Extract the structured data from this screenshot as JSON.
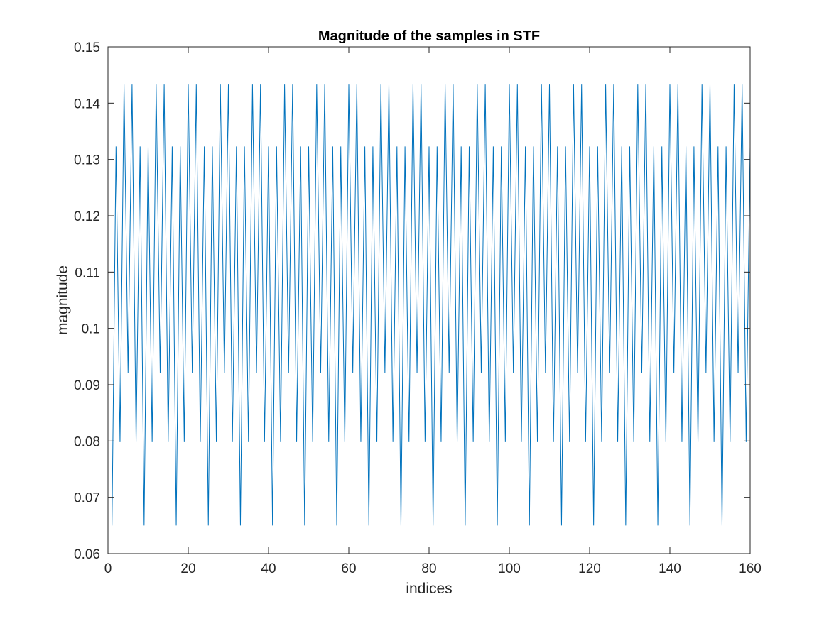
{
  "chart_data": {
    "type": "line",
    "title": "Magnitude of the samples in STF",
    "xlabel": "indices",
    "ylabel": "magnitude",
    "xlim": [
      0,
      160
    ],
    "ylim": [
      0.06,
      0.15
    ],
    "xticks": [
      0,
      20,
      40,
      60,
      80,
      100,
      120,
      140,
      160
    ],
    "xtick_labels": [
      "0",
      "20",
      "40",
      "60",
      "80",
      "100",
      "120",
      "140",
      "160"
    ],
    "yticks": [
      0.06,
      0.07,
      0.08,
      0.09,
      0.1,
      0.11,
      0.12,
      0.13,
      0.14,
      0.15
    ],
    "ytick_labels": [
      "0.06",
      "0.07",
      "0.08",
      "0.09",
      "0.1",
      "0.11",
      "0.12",
      "0.13",
      "0.14",
      "0.15"
    ],
    "grid": false,
    "box": true,
    "line_color": "#0072BD",
    "series": [
      {
        "x": [
          1,
          2,
          3,
          4,
          5,
          6,
          7,
          8,
          9,
          10,
          11,
          12,
          13,
          14,
          15,
          16,
          17,
          18,
          19,
          20,
          21,
          22,
          23,
          24,
          25,
          26,
          27,
          28,
          29,
          30,
          31,
          32,
          33,
          34,
          35,
          36,
          37,
          38,
          39,
          40,
          41,
          42,
          43,
          44,
          45,
          46,
          47,
          48,
          49,
          50,
          51,
          52,
          53,
          54,
          55,
          56,
          57,
          58,
          59,
          60,
          61,
          62,
          63,
          64,
          65,
          66,
          67,
          68,
          69,
          70,
          71,
          72,
          73,
          74,
          75,
          76,
          77,
          78,
          79,
          80,
          81,
          82,
          83,
          84,
          85,
          86,
          87,
          88,
          89,
          90,
          91,
          92,
          93,
          94,
          95,
          96,
          97,
          98,
          99,
          100,
          101,
          102,
          103,
          104,
          105,
          106,
          107,
          108,
          109,
          110,
          111,
          112,
          113,
          114,
          115,
          116,
          117,
          118,
          119,
          120,
          121,
          122,
          123,
          124,
          125,
          126,
          127,
          128,
          129,
          130,
          131,
          132,
          133,
          134,
          135,
          136,
          137,
          138,
          139,
          140,
          141,
          142,
          143,
          144,
          145,
          146,
          147,
          148,
          149,
          150,
          151,
          152,
          153,
          154,
          155,
          156,
          157,
          158,
          159,
          160
        ],
        "y": [
          0.065,
          0.1323,
          0.0798,
          0.1433,
          0.0921,
          0.1433,
          0.0798,
          0.1323,
          0.065,
          0.1323,
          0.0798,
          0.1433,
          0.0921,
          0.1433,
          0.0798,
          0.1323,
          0.065,
          0.1323,
          0.0798,
          0.1433,
          0.0921,
          0.1433,
          0.0798,
          0.1323,
          0.065,
          0.1323,
          0.0798,
          0.1433,
          0.0921,
          0.1433,
          0.0798,
          0.1323,
          0.065,
          0.1323,
          0.0798,
          0.1433,
          0.0921,
          0.1433,
          0.0798,
          0.1323,
          0.065,
          0.1323,
          0.0798,
          0.1433,
          0.0921,
          0.1433,
          0.0798,
          0.1323,
          0.065,
          0.1323,
          0.0798,
          0.1433,
          0.0921,
          0.1433,
          0.0798,
          0.1323,
          0.065,
          0.1323,
          0.0798,
          0.1433,
          0.0921,
          0.1433,
          0.0798,
          0.1323,
          0.065,
          0.1323,
          0.0798,
          0.1433,
          0.0921,
          0.1433,
          0.0798,
          0.1323,
          0.065,
          0.1323,
          0.0798,
          0.1433,
          0.0921,
          0.1433,
          0.0798,
          0.1323,
          0.065,
          0.1323,
          0.0798,
          0.1433,
          0.0921,
          0.1433,
          0.0798,
          0.1323,
          0.065,
          0.1323,
          0.0798,
          0.1433,
          0.0921,
          0.1433,
          0.0798,
          0.1323,
          0.065,
          0.1323,
          0.0798,
          0.1433,
          0.0921,
          0.1433,
          0.0798,
          0.1323,
          0.065,
          0.1323,
          0.0798,
          0.1433,
          0.0921,
          0.1433,
          0.0798,
          0.1323,
          0.065,
          0.1323,
          0.0798,
          0.1433,
          0.0921,
          0.1433,
          0.0798,
          0.1323,
          0.065,
          0.1323,
          0.0798,
          0.1433,
          0.0921,
          0.1433,
          0.0798,
          0.1323,
          0.065,
          0.1323,
          0.0798,
          0.1433,
          0.0921,
          0.1433,
          0.0798,
          0.1323,
          0.065,
          0.1323,
          0.0798,
          0.1433,
          0.0921,
          0.1433,
          0.0798,
          0.1323,
          0.065,
          0.1323,
          0.0798,
          0.1433,
          0.0921,
          0.1433,
          0.0798,
          0.1323,
          0.065,
          0.1323,
          0.0798,
          0.1433,
          0.0921,
          0.1433,
          0.0798,
          0.1323
        ]
      }
    ]
  }
}
